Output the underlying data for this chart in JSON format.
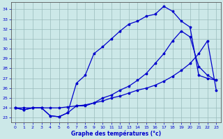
{
  "xlabel": "Graphe des températures (°c)",
  "bg_color": "#cce8e8",
  "grid_color": "#99bbbb",
  "line_color": "#0000cc",
  "text_color": "#0000cc",
  "axis_color": "#555555",
  "ylim": [
    22.5,
    34.7
  ],
  "xlim": [
    -0.5,
    23.5
  ],
  "yticks": [
    23,
    24,
    25,
    26,
    27,
    28,
    29,
    30,
    31,
    32,
    33,
    34
  ],
  "xticks": [
    0,
    1,
    2,
    3,
    4,
    5,
    6,
    7,
    8,
    9,
    10,
    11,
    12,
    13,
    14,
    15,
    16,
    17,
    18,
    19,
    20,
    21,
    22,
    23
  ],
  "series1_x": [
    0,
    1,
    2,
    3,
    4,
    5,
    6,
    7,
    8,
    9,
    10,
    11,
    12,
    13,
    14,
    15,
    16,
    17,
    18,
    19,
    20,
    21,
    22,
    23
  ],
  "series1_y": [
    24.0,
    23.8,
    24.0,
    24.0,
    23.2,
    23.1,
    23.5,
    26.5,
    27.3,
    29.5,
    30.2,
    31.0,
    31.8,
    32.5,
    32.8,
    33.3,
    33.5,
    34.3,
    33.8,
    32.8,
    32.2,
    27.3,
    27.0,
    26.8
  ],
  "series2_x": [
    0,
    1,
    2,
    3,
    4,
    5,
    6,
    7,
    8,
    9,
    10,
    11,
    12,
    13,
    14,
    15,
    16,
    17,
    18,
    19,
    20,
    21,
    22,
    23
  ],
  "series2_y": [
    24.0,
    24.0,
    24.0,
    24.0,
    24.0,
    24.0,
    24.1,
    24.2,
    24.3,
    24.5,
    24.7,
    25.0,
    25.2,
    25.5,
    25.8,
    26.0,
    26.3,
    26.7,
    27.2,
    27.8,
    28.5,
    29.5,
    30.8,
    25.8
  ],
  "series3_x": [
    0,
    1,
    2,
    3,
    4,
    5,
    6,
    7,
    8,
    9,
    10,
    11,
    12,
    13,
    14,
    15,
    16,
    17,
    18,
    19,
    20,
    21,
    22,
    23
  ],
  "series3_y": [
    24.0,
    23.8,
    24.0,
    24.0,
    23.2,
    23.1,
    23.5,
    24.2,
    24.2,
    24.5,
    25.0,
    25.3,
    25.8,
    26.2,
    26.8,
    27.5,
    28.5,
    29.5,
    30.8,
    31.8,
    31.2,
    28.2,
    27.3,
    26.8
  ]
}
